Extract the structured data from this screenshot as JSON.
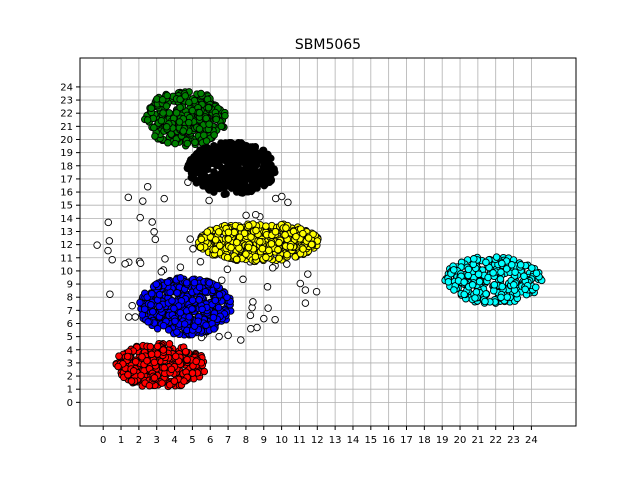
{
  "chart_data": {
    "type": "scatter",
    "title": "SBM5065",
    "xlabel": "",
    "ylabel": "",
    "xlim": [
      -1.3,
      26.5
    ],
    "ylim": [
      -1.8,
      26.2
    ],
    "xticks": [
      0,
      1,
      2,
      3,
      4,
      5,
      6,
      7,
      8,
      9,
      10,
      11,
      12,
      13,
      14,
      15,
      16,
      17,
      18,
      19,
      20,
      21,
      22,
      23,
      24
    ],
    "yticks": [
      0,
      1,
      2,
      3,
      4,
      5,
      6,
      7,
      8,
      9,
      10,
      11,
      12,
      13,
      14,
      15,
      16,
      17,
      18,
      19,
      20,
      21,
      22,
      23,
      24
    ],
    "grid": true,
    "marker": "circle",
    "clusters": [
      {
        "color": "#008000",
        "center": [
          4.6,
          21.6
        ],
        "spread": [
          2.3,
          2.1
        ],
        "count": 320
      },
      {
        "color": "#000000",
        "center": [
          7.2,
          17.8
        ],
        "spread": [
          2.5,
          2.0
        ],
        "count": 420
      },
      {
        "color": "#ffff00",
        "center": [
          8.7,
          12.2
        ],
        "spread": [
          3.4,
          1.5
        ],
        "count": 420
      },
      {
        "color": "#0000ff",
        "center": [
          4.6,
          7.3
        ],
        "spread": [
          2.6,
          2.2
        ],
        "count": 420
      },
      {
        "color": "#ff0000",
        "center": [
          3.2,
          2.8
        ],
        "spread": [
          2.6,
          1.7
        ],
        "count": 330
      },
      {
        "color": "#00ffff",
        "center": [
          21.8,
          9.3
        ],
        "spread": [
          2.8,
          1.8
        ],
        "count": 300
      },
      {
        "color": "#ffffff",
        "center": [
          6.0,
          11.0
        ],
        "spread": [
          6.5,
          6.5
        ],
        "count": 90
      }
    ]
  }
}
